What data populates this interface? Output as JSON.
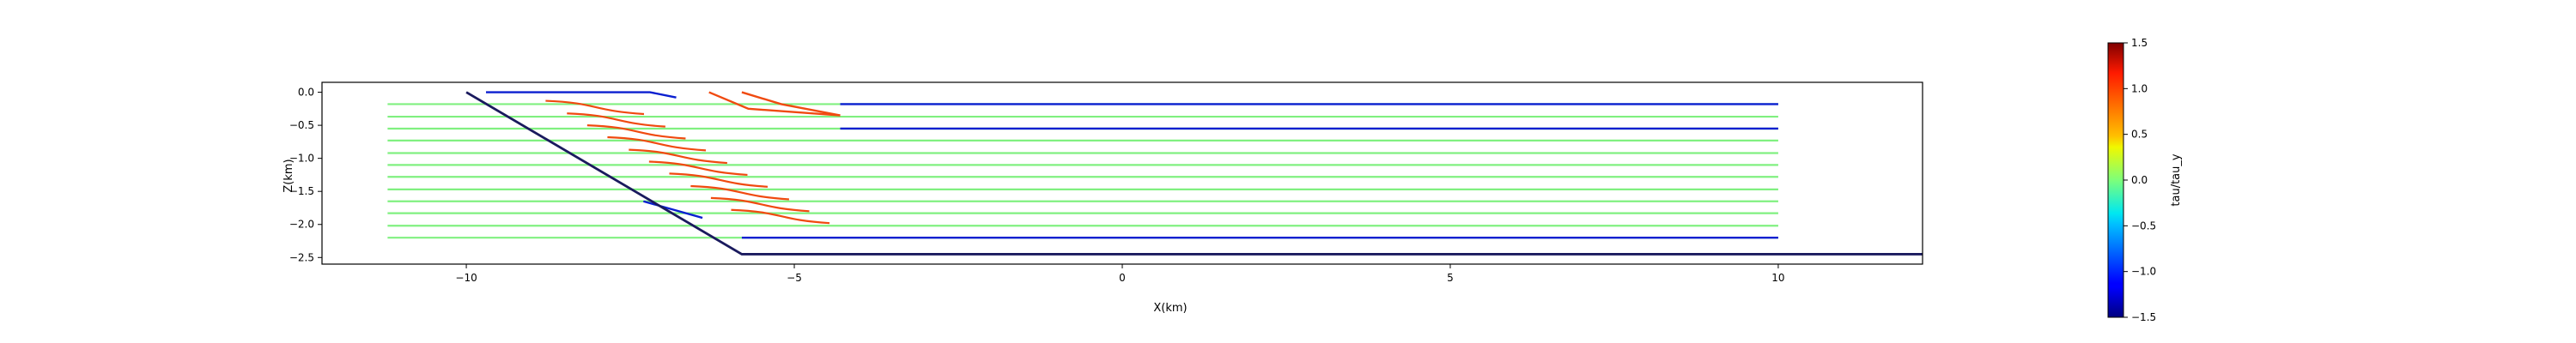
{
  "chart_data": {
    "type": "line",
    "title": "",
    "xlabel": "X(km)",
    "ylabel": "Z(km)",
    "xlim": [
      -12.2,
      12.2
    ],
    "ylim": [
      -2.6,
      0.15
    ],
    "xticks": [
      "−10",
      "−5",
      "0",
      "5",
      "10"
    ],
    "yticks": [
      "0.0",
      "−0.5",
      "−1.0",
      "−1.5",
      "−2.0",
      "−2.5"
    ],
    "xtick_values": [
      -10,
      -5,
      0,
      5,
      10
    ],
    "ytick_values": [
      0.0,
      -0.5,
      -1.0,
      -1.5,
      -2.0,
      -2.5
    ],
    "grid": false,
    "colorbar": {
      "label": "tau/tau_y",
      "colormap": "jet",
      "range": [
        -1.5,
        1.5
      ],
      "ticks": [
        "1.5",
        "1.0",
        "0.5",
        "0.0",
        "−0.5",
        "−1.0",
        "−1.5"
      ],
      "tick_values": [
        1.5,
        1.0,
        0.5,
        0.0,
        -0.5,
        -1.0,
        -1.5
      ]
    },
    "level_z": [
      -0.18,
      -0.37,
      -0.55,
      -0.73,
      -0.92,
      -1.1,
      -1.28,
      -1.47,
      -1.65,
      -1.83,
      -2.02,
      -2.2
    ],
    "boundaries": [
      {
        "name": "",
        "color": "#1a1a5e",
        "points": [
          [
            -10,
            0.0
          ],
          [
            -5.8,
            -2.45
          ],
          [
            12.2,
            -2.45
          ]
        ]
      }
    ],
    "series": [
      {
        "name": "",
        "color": "#0a1fd0",
        "points": [
          [
            -9.7,
            0.0
          ],
          [
            -7.2,
            0.0
          ],
          [
            -6.8,
            -0.08
          ]
        ]
      },
      {
        "name": "",
        "color": "#f04a10",
        "points": [
          [
            -6.3,
            0.0
          ],
          [
            -5.7,
            -0.25
          ],
          [
            -4.3,
            -0.35
          ]
        ]
      },
      {
        "name": "",
        "color": "#f04a10",
        "points": [
          [
            -5.8,
            0.0
          ],
          [
            -5.2,
            -0.18
          ],
          [
            -4.3,
            -0.35
          ]
        ]
      },
      {
        "name": "",
        "color": "#0a1fd0",
        "points": [
          [
            -4.3,
            -0.18
          ],
          [
            10.0,
            -0.18
          ]
        ]
      },
      {
        "name": "",
        "color": "#0a1fd0",
        "points": [
          [
            -4.3,
            -0.55
          ],
          [
            10.0,
            -0.55
          ]
        ]
      },
      {
        "name": "",
        "color": "#0a1fd0",
        "points": [
          [
            -5.8,
            -2.2
          ],
          [
            10.0,
            -2.2
          ]
        ]
      },
      {
        "name": "",
        "color": "#0a1fd0",
        "points": [
          [
            -7.3,
            -1.65
          ],
          [
            -6.4,
            -1.9
          ]
        ]
      }
    ]
  }
}
